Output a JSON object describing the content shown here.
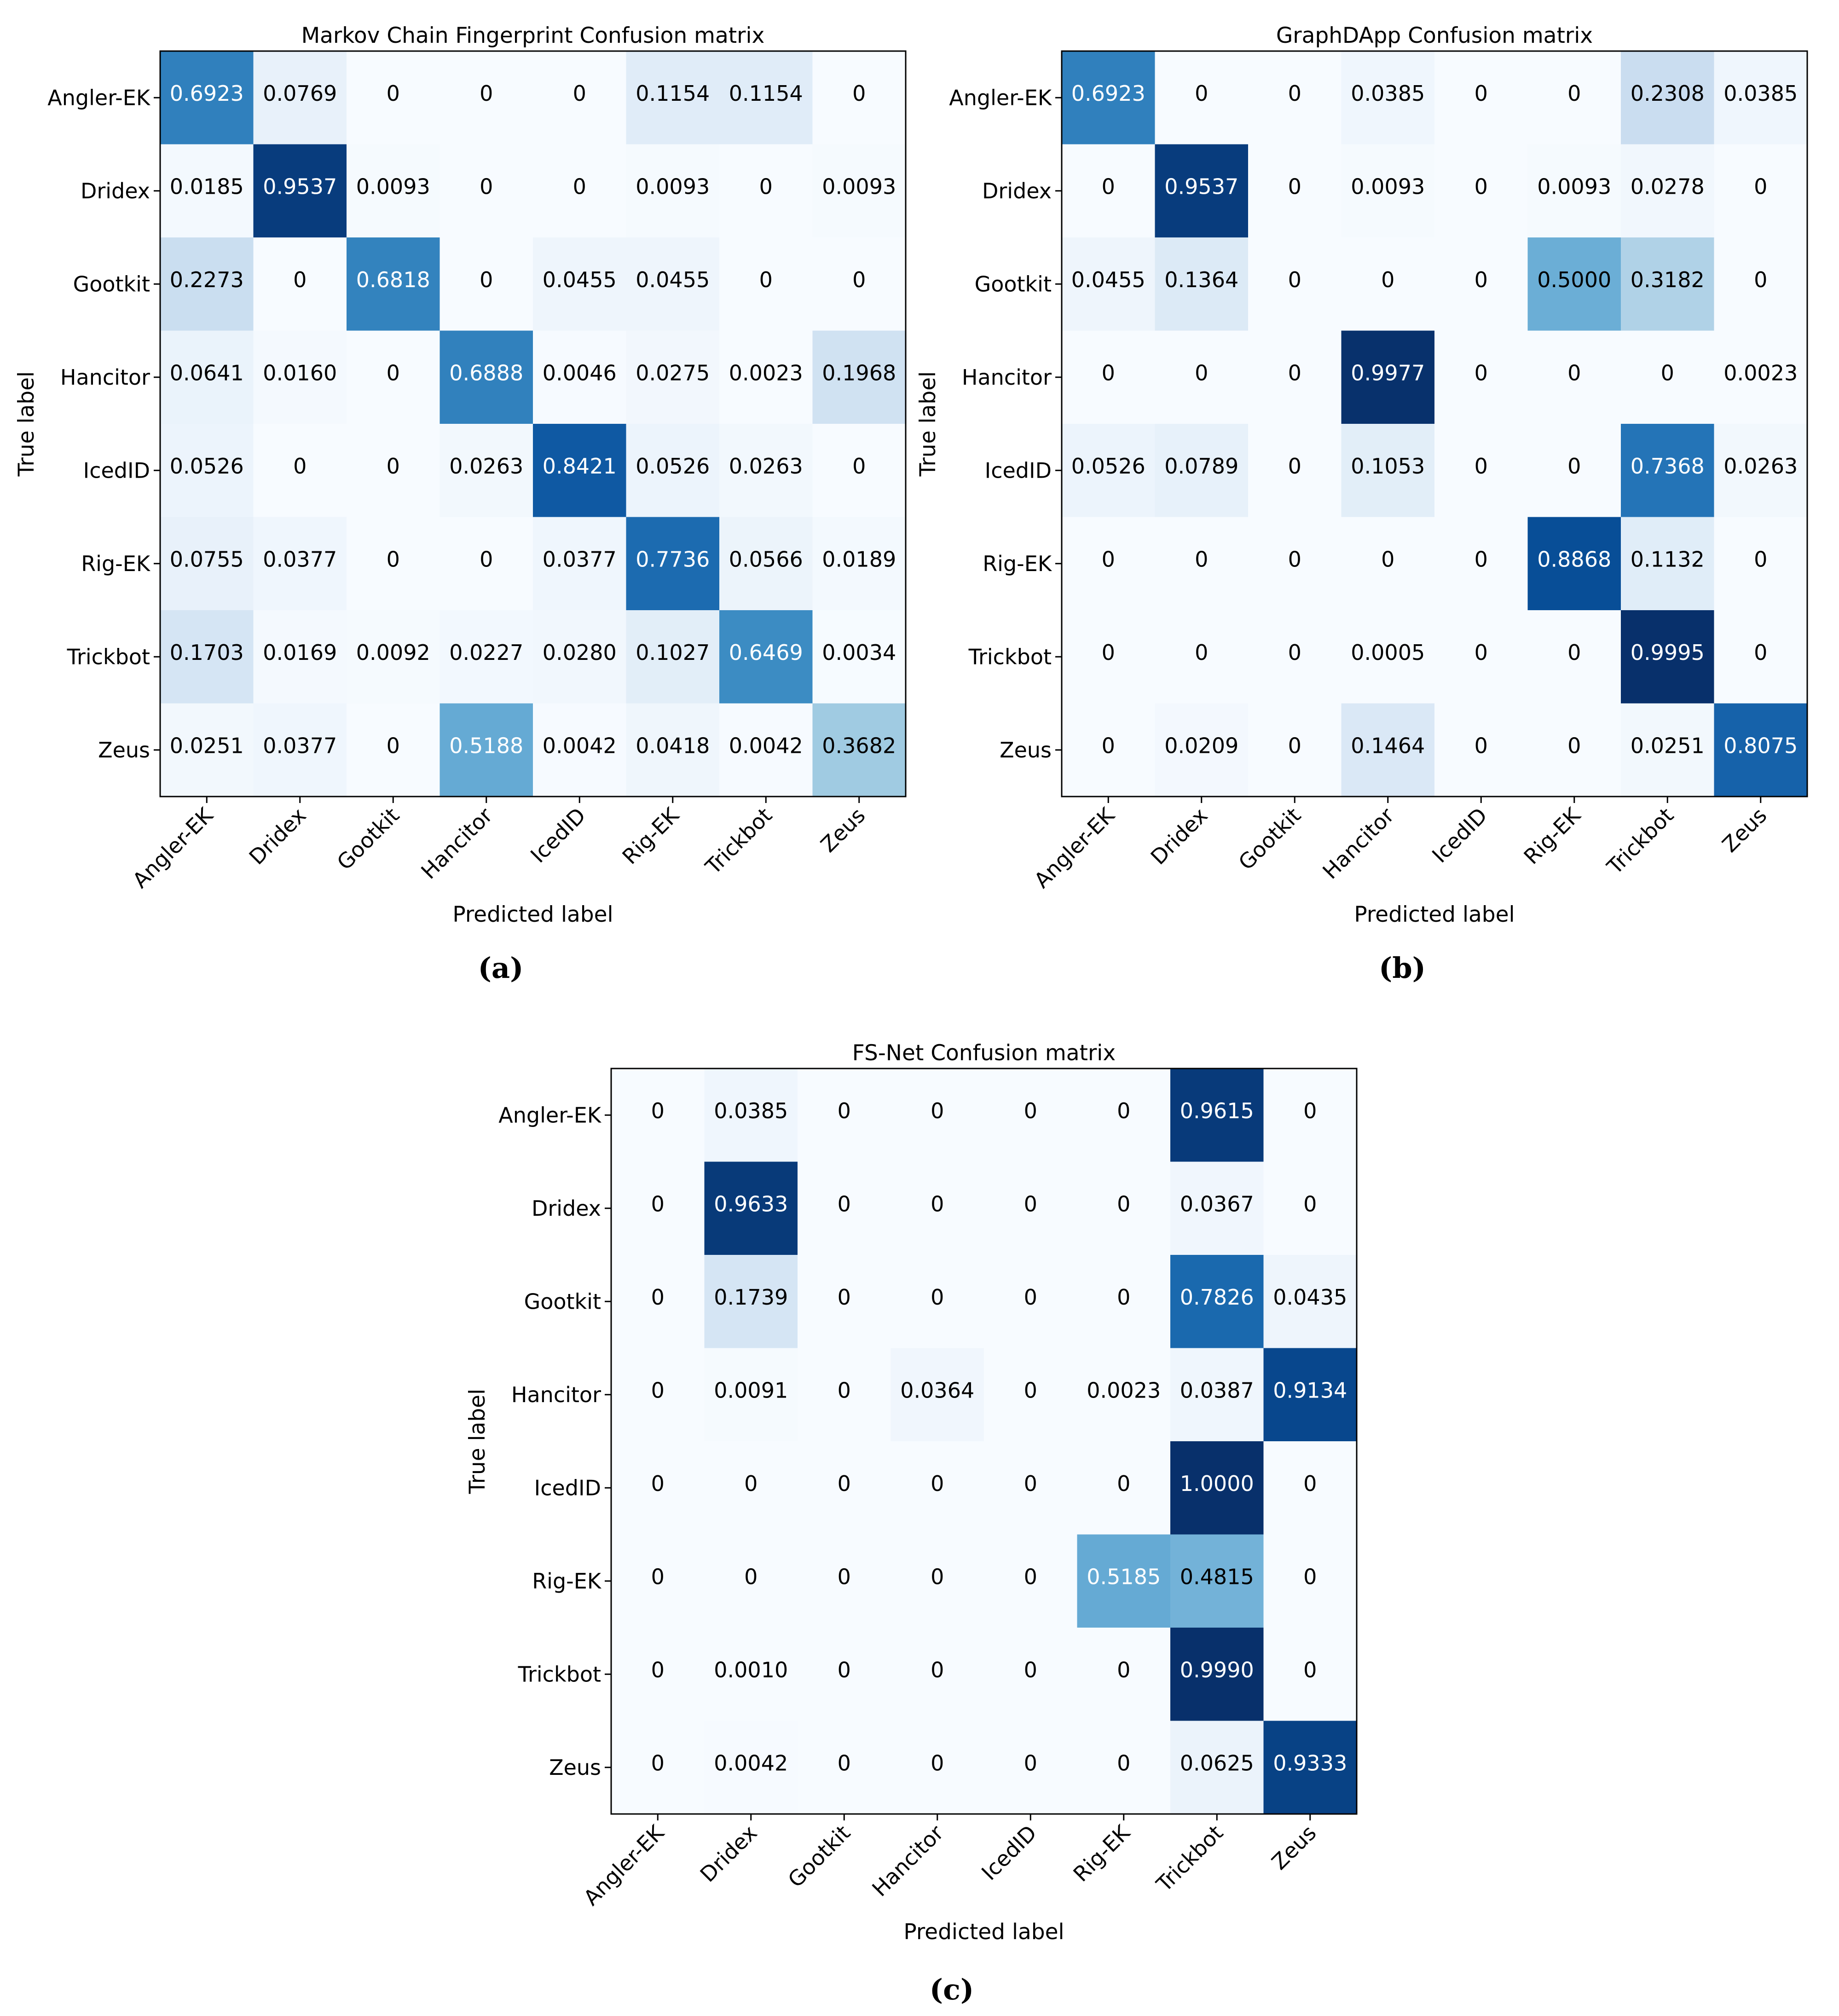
{
  "chart_data": [
    {
      "type": "heatmap",
      "panel": "(a)",
      "title": "Markov Chain Fingerprint Confusion matrix",
      "xlabel": "Predicted label",
      "ylabel": "True label",
      "x_labels": [
        "Angler-EK",
        "Dridex",
        "Gootkit",
        "Hancitor",
        "IcedID",
        "Rig-EK",
        "Trickbot",
        "Zeus"
      ],
      "y_labels": [
        "Angler-EK",
        "Dridex",
        "Gootkit",
        "Hancitor",
        "IcedID",
        "Rig-EK",
        "Trickbot",
        "Zeus"
      ],
      "value_range": [
        0,
        1
      ],
      "colormap": "Blues",
      "matrix": [
        [
          "0.6923",
          "0.0769",
          "0",
          "0",
          "0",
          "0.1154",
          "0.1154",
          "0"
        ],
        [
          "0.0185",
          "0.9537",
          "0.0093",
          "0",
          "0",
          "0.0093",
          "0",
          "0.0093"
        ],
        [
          "0.2273",
          "0",
          "0.6818",
          "0",
          "0.0455",
          "0.0455",
          "0",
          "0"
        ],
        [
          "0.0641",
          "0.0160",
          "0",
          "0.6888",
          "0.0046",
          "0.0275",
          "0.0023",
          "0.1968"
        ],
        [
          "0.0526",
          "0",
          "0",
          "0.0263",
          "0.8421",
          "0.0526",
          "0.0263",
          "0"
        ],
        [
          "0.0755",
          "0.0377",
          "0",
          "0",
          "0.0377",
          "0.7736",
          "0.0566",
          "0.0189"
        ],
        [
          "0.1703",
          "0.0169",
          "0.0092",
          "0.0227",
          "0.0280",
          "0.1027",
          "0.6469",
          "0.0034"
        ],
        [
          "0.0251",
          "0.0377",
          "0",
          "0.5188",
          "0.0042",
          "0.0418",
          "0.0042",
          "0.3682"
        ]
      ]
    },
    {
      "type": "heatmap",
      "panel": "(b)",
      "title": "GraphDApp Confusion matrix",
      "xlabel": "Predicted label",
      "ylabel": "True label",
      "x_labels": [
        "Angler-EK",
        "Dridex",
        "Gootkit",
        "Hancitor",
        "IcedID",
        "Rig-EK",
        "Trickbot",
        "Zeus"
      ],
      "y_labels": [
        "Angler-EK",
        "Dridex",
        "Gootkit",
        "Hancitor",
        "IcedID",
        "Rig-EK",
        "Trickbot",
        "Zeus"
      ],
      "value_range": [
        0,
        1
      ],
      "colormap": "Blues",
      "matrix": [
        [
          "0.6923",
          "0",
          "0",
          "0.0385",
          "0",
          "0",
          "0.2308",
          "0.0385"
        ],
        [
          "0",
          "0.9537",
          "0",
          "0.0093",
          "0",
          "0.0093",
          "0.0278",
          "0"
        ],
        [
          "0.0455",
          "0.1364",
          "0",
          "0",
          "0",
          "0.5000",
          "0.3182",
          "0"
        ],
        [
          "0",
          "0",
          "0",
          "0.9977",
          "0",
          "0",
          "0",
          "0.0023"
        ],
        [
          "0.0526",
          "0.0789",
          "0",
          "0.1053",
          "0",
          "0",
          "0.7368",
          "0.0263"
        ],
        [
          "0",
          "0",
          "0",
          "0",
          "0",
          "0.8868",
          "0.1132",
          "0"
        ],
        [
          "0",
          "0",
          "0",
          "0.0005",
          "0",
          "0",
          "0.9995",
          "0"
        ],
        [
          "0",
          "0.0209",
          "0",
          "0.1464",
          "0",
          "0",
          "0.0251",
          "0.8075"
        ]
      ]
    },
    {
      "type": "heatmap",
      "panel": "(c)",
      "title": "FS-Net Confusion matrix",
      "xlabel": "Predicted label",
      "ylabel": "True label",
      "x_labels": [
        "Angler-EK",
        "Dridex",
        "Gootkit",
        "Hancitor",
        "IcedID",
        "Rig-EK",
        "Trickbot",
        "Zeus"
      ],
      "y_labels": [
        "Angler-EK",
        "Dridex",
        "Gootkit",
        "Hancitor",
        "IcedID",
        "Rig-EK",
        "Trickbot",
        "Zeus"
      ],
      "value_range": [
        0,
        1
      ],
      "colormap": "Blues",
      "matrix": [
        [
          "0",
          "0.0385",
          "0",
          "0",
          "0",
          "0",
          "0.9615",
          "0"
        ],
        [
          "0",
          "0.9633",
          "0",
          "0",
          "0",
          "0",
          "0.0367",
          "0"
        ],
        [
          "0",
          "0.1739",
          "0",
          "0",
          "0",
          "0",
          "0.7826",
          "0.0435"
        ],
        [
          "0",
          "0.0091",
          "0",
          "0.0364",
          "0",
          "0.0023",
          "0.0387",
          "0.9134"
        ],
        [
          "0",
          "0",
          "0",
          "0",
          "0",
          "0",
          "1.0000",
          "0"
        ],
        [
          "0",
          "0",
          "0",
          "0",
          "0",
          "0.5185",
          "0.4815",
          "0"
        ],
        [
          "0",
          "0.0010",
          "0",
          "0",
          "0",
          "0",
          "0.9990",
          "0"
        ],
        [
          "0",
          "0.0042",
          "0",
          "0",
          "0",
          "0",
          "0.0625",
          "0.9333"
        ]
      ]
    }
  ],
  "colors": {
    "text_dark": "#000000",
    "text_light": "#ffffff",
    "frame": "#000000"
  }
}
